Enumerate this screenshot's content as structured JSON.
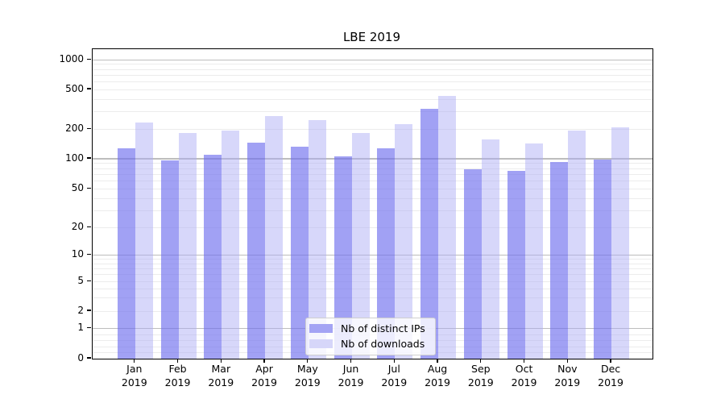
{
  "figure": {
    "background": "#ffffff"
  },
  "chart_data": {
    "type": "bar",
    "title": "LBE 2019",
    "yscale": "symlog",
    "grid": true,
    "legend_position": "lower center",
    "ylim": [
      0,
      1300
    ],
    "categories": [
      "Jan 2019",
      "Feb 2019",
      "Mar 2019",
      "Apr 2019",
      "May 2019",
      "Jun 2019",
      "Jul 2019",
      "Aug 2019",
      "Sep 2019",
      "Oct 2019",
      "Nov 2019",
      "Dec 2019"
    ],
    "y_ticks": [
      {
        "value": 1000,
        "label": "1000"
      },
      {
        "value": 500,
        "label": "500"
      },
      {
        "value": 200,
        "label": "200"
      },
      {
        "value": 100,
        "label": "100"
      },
      {
        "value": 50,
        "label": "50"
      },
      {
        "value": 20,
        "label": "20"
      },
      {
        "value": 10,
        "label": "10"
      },
      {
        "value": 5,
        "label": "5"
      },
      {
        "value": 2,
        "label": "2"
      },
      {
        "value": 1,
        "label": "1"
      },
      {
        "value": 0,
        "label": "0"
      }
    ],
    "series": [
      {
        "name": "Nb of distinct IPs",
        "color": "#a4a4f4",
        "fill_rgba": "rgba(113,113,238,0.66)",
        "values": [
          128,
          96,
          110,
          146,
          133,
          106,
          128,
          318,
          78,
          76,
          93,
          98
        ]
      },
      {
        "name": "Nb of downloads",
        "color": "#d6d6f9",
        "fill_rgba": "rgba(170,170,244,0.47)",
        "values": [
          232,
          184,
          194,
          271,
          249,
          182,
          225,
          433,
          158,
          142,
          193,
          210
        ]
      }
    ],
    "grid_colors": {
      "minor": "#ececec",
      "major": "#bdbdbd"
    }
  }
}
